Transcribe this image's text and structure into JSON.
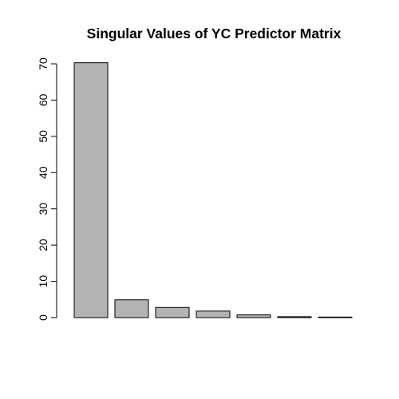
{
  "chart_data": {
    "type": "bar",
    "title": "Singular Values of YC Predictor Matrix",
    "xlabel": "",
    "ylabel": "",
    "categories": [
      "",
      "",
      "",
      "",
      "",
      "",
      ""
    ],
    "values": [
      70.3,
      4.9,
      2.8,
      1.8,
      0.75,
      0.25,
      0.15
    ],
    "ylim": [
      0,
      70
    ],
    "yticks": [
      0,
      10,
      20,
      30,
      40,
      50,
      60,
      70
    ],
    "bar_color": "#b3b3b3",
    "border_color": "#000000",
    "grid": false,
    "legend": "none"
  }
}
